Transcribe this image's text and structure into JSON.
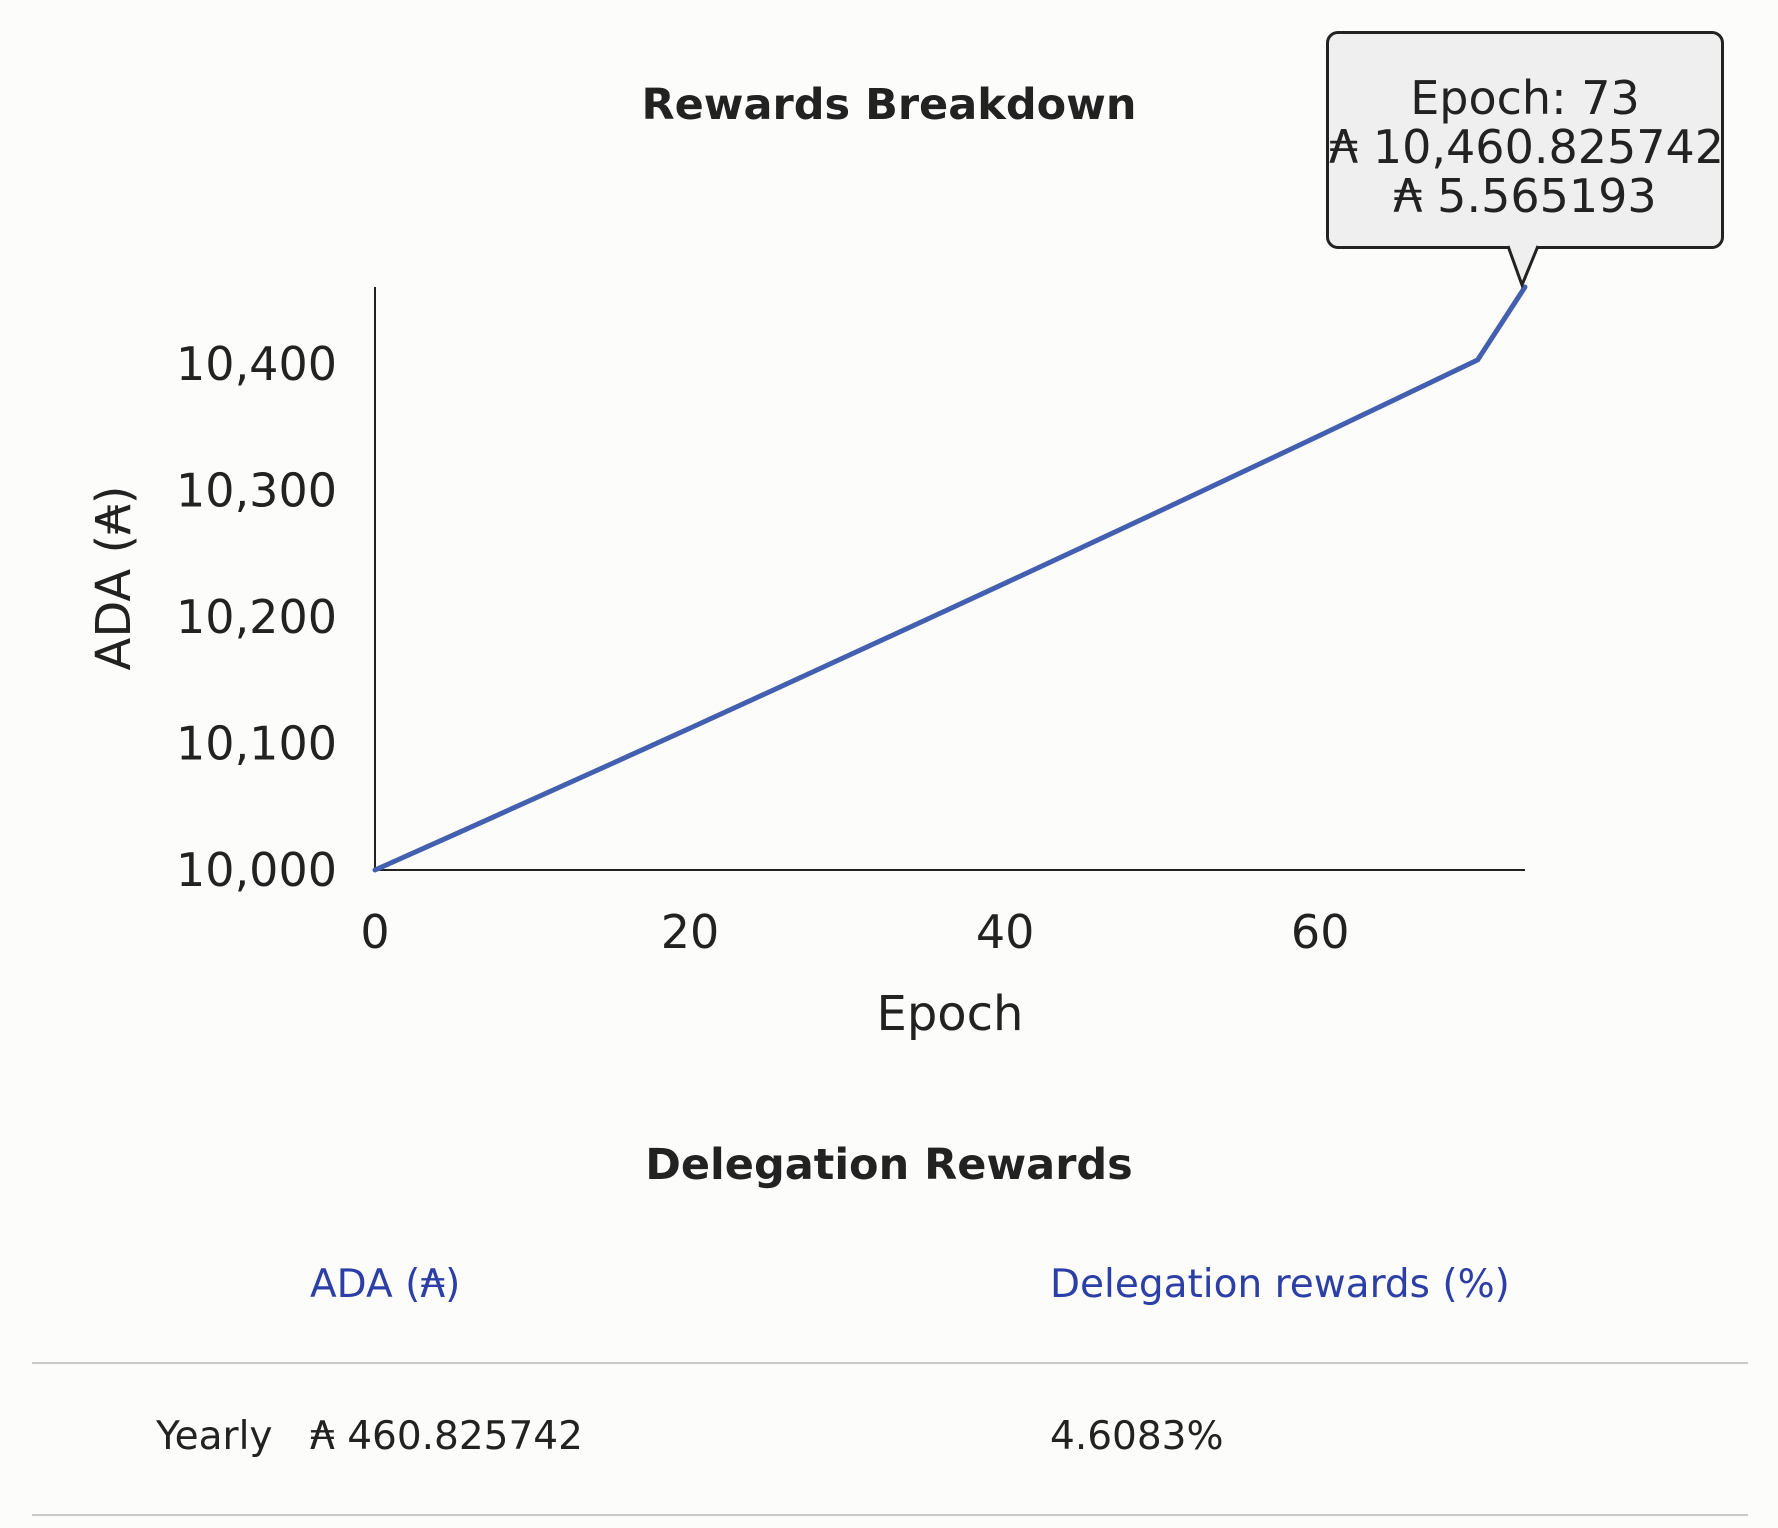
{
  "chart_data": {
    "type": "line",
    "title": "Rewards Breakdown",
    "xlabel": "Epoch",
    "ylabel": "ADA (₳)",
    "xlim": [
      0,
      73
    ],
    "ylim": [
      10000,
      10460.825742
    ],
    "x_ticks": [
      0,
      20,
      40,
      60
    ],
    "x_tick_labels": [
      "0",
      "20",
      "40",
      "60"
    ],
    "y_ticks": [
      10000,
      10100,
      10200,
      10300,
      10400
    ],
    "y_tick_labels": [
      "10,000",
      "10,100",
      "10,200",
      "10,300",
      "10,400"
    ],
    "grid": false,
    "legend": "none",
    "line_color": "#4360b0",
    "series": [
      {
        "x": [
          0,
          5,
          10,
          15,
          20,
          25,
          30,
          35,
          40,
          45,
          50,
          55,
          60,
          65,
          70,
          73
        ],
        "values": [
          10000,
          10027.8,
          10055.8,
          10083.9,
          10112.2,
          10140.6,
          10169.2,
          10197.9,
          10226.7,
          10255.7,
          10284.9,
          10314.2,
          10343.7,
          10373.4,
          10403.2,
          10460.825742
        ]
      }
    ],
    "tooltip": {
      "epoch_line": "Epoch: 73",
      "total_line": "₳ 10,460.825742",
      "reward_line": "₳ 5.565193"
    }
  },
  "rewards_table": {
    "title": "Delegation Rewards",
    "headers": [
      "ADA (₳)",
      "Delegation rewards (%)"
    ],
    "rows": [
      {
        "label": "Yearly",
        "ada": "₳ 460.825742",
        "percent": "4.6083%"
      }
    ]
  }
}
